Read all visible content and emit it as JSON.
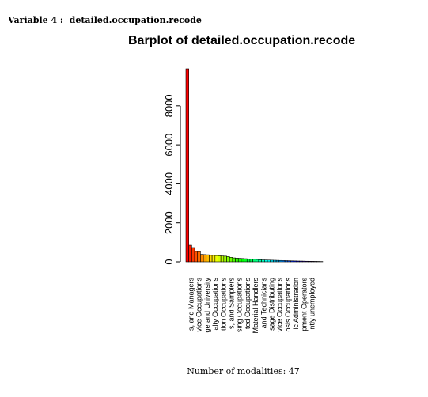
{
  "heading": "Variable 4 :  detailed.occupation.recode",
  "footer": "Number of modalities: 47",
  "chart_data": {
    "type": "bar",
    "title": "Barplot of detailed.occupation.recode",
    "xlabel": "",
    "ylabel": "",
    "ylim": [
      0,
      10000
    ],
    "yticks": [
      0,
      2000,
      4000,
      6000,
      8000
    ],
    "grid": false,
    "category_labels_visible": [
      "s, and Managers",
      "vice Occupations",
      "ge and University",
      "alty Occupations",
      "tion Occupations",
      "s, and Samplers",
      "sing Occupations",
      "ted Occupations",
      "Material Handlers",
      "and Technicians",
      "sage Distributing",
      "vice Occupations",
      "osis Occupations",
      "ic Administration",
      "pment Operators",
      "ntly unemployed"
    ],
    "values": [
      9900,
      850,
      730,
      530,
      520,
      380,
      370,
      360,
      330,
      330,
      320,
      310,
      300,
      290,
      270,
      230,
      200,
      190,
      180,
      170,
      160,
      150,
      140,
      130,
      120,
      110,
      100,
      95,
      90,
      85,
      80,
      75,
      70,
      65,
      60,
      55,
      50,
      45,
      40,
      38,
      35,
      30,
      28,
      25,
      22,
      20,
      15
    ]
  }
}
